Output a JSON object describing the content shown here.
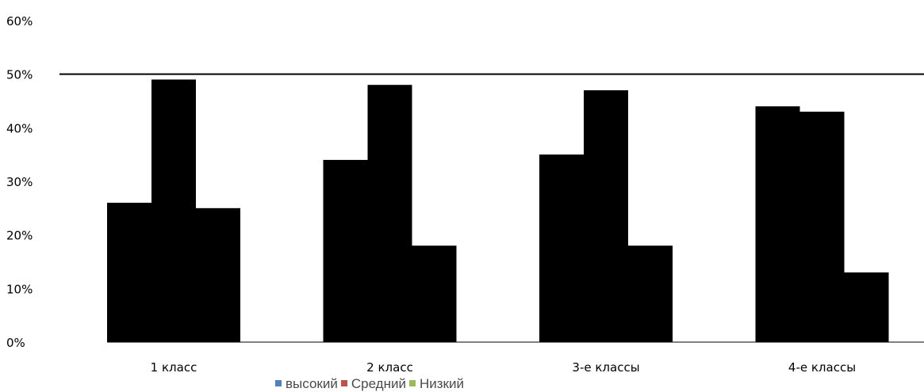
{
  "chart_data": {
    "type": "bar",
    "categories": [
      "1 класс",
      "2 класс",
      "3-е классы",
      "4-е классы"
    ],
    "series": [
      {
        "name": "высокий",
        "color": "#4f81bd",
        "values": [
          26,
          34,
          35,
          44
        ]
      },
      {
        "name": "Средний",
        "color": "#c0504d",
        "values": [
          49,
          48,
          47,
          43
        ]
      },
      {
        "name": "Низкий",
        "color": "#9bbb59",
        "values": [
          25,
          18,
          18,
          13
        ]
      }
    ],
    "ylim": [
      0,
      60
    ],
    "yticks": [
      0,
      10,
      20,
      30,
      40,
      50,
      60
    ],
    "ytick_format": "{v}%",
    "reference_line": 50,
    "bar_fill": "#000000",
    "legend_position": "bottom",
    "grid": false
  }
}
